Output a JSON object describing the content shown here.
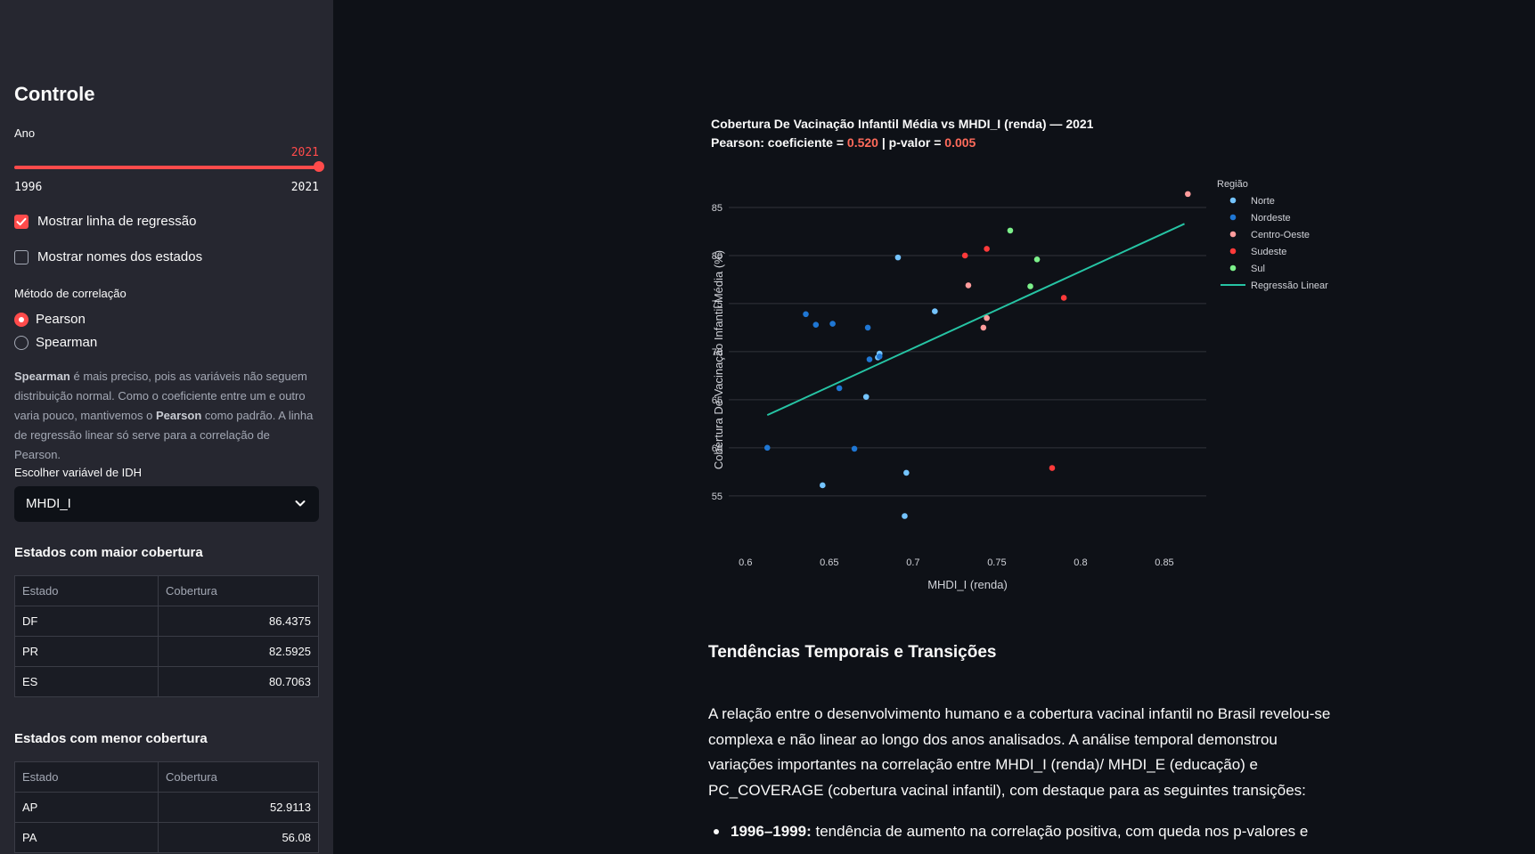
{
  "sidebar": {
    "title": "Controle",
    "year_label": "Ano",
    "year_value": "2021",
    "year_min": "1996",
    "year_max": "2021",
    "show_regression": {
      "label": "Mostrar linha de regressão",
      "checked": true
    },
    "show_state_names": {
      "label": "Mostrar nomes dos estados",
      "checked": false
    },
    "method_label": "Método de correlação",
    "methods": [
      {
        "label": "Pearson",
        "selected": true
      },
      {
        "label": "Spearman",
        "selected": false
      }
    ],
    "info": {
      "b1": "Spearman",
      "t1": " é mais preciso, pois as variáveis não seguem distribuição normal. Como o coeficiente entre um e outro varia pouco, mantivemos o ",
      "b2": "Pearson",
      "t2": " como padrão. A linha de regressão linear só serve para a correlação de Pearson."
    },
    "idh_label": "Escolher variável de IDH",
    "idh_value": "MHDI_I",
    "top_title": "Estados com maior cobertura",
    "bottom_title": "Estados com menor cobertura",
    "col_state": "Estado",
    "col_cov": "Cobertura",
    "top_rows": [
      {
        "state": "DF",
        "cov": "86.4375"
      },
      {
        "state": "PR",
        "cov": "82.5925"
      },
      {
        "state": "ES",
        "cov": "80.7063"
      }
    ],
    "bottom_rows": [
      {
        "state": "AP",
        "cov": "52.9113"
      },
      {
        "state": "PA",
        "cov": "56.08"
      }
    ]
  },
  "chart_title": {
    "line1": "Cobertura De Vacinação Infantil Média vs MHDI_I (renda) — 2021",
    "line2_prefix": "Pearson: coeficiente = ",
    "coef": "0.520",
    "line2_mid": " | p-valor = ",
    "pval": "0.005"
  },
  "chart_data": {
    "type": "scatter",
    "xlabel": "MHDI_I (renda)",
    "ylabel": "Cobertura De Vacinação Infantil Média (%)",
    "xlim": [
      0.59,
      0.875
    ],
    "ylim": [
      51,
      87.5
    ],
    "xticks": [
      0.6,
      0.65,
      0.7,
      0.75,
      0.8,
      0.85
    ],
    "xtick_labels": [
      "0.6",
      "0.65",
      "0.7",
      "0.75",
      "0.8",
      "0.85"
    ],
    "yticks": [
      55,
      60,
      65,
      70,
      75,
      80,
      85
    ],
    "legend_title": "Região",
    "legend_position": "top-right",
    "series": [
      {
        "name": "Norte",
        "color": "#74c4ff",
        "points": [
          [
            0.691,
            79.8
          ],
          [
            0.713,
            74.2
          ],
          [
            0.672,
            65.3
          ],
          [
            0.68,
            69.8
          ],
          [
            0.679,
            69.4
          ],
          [
            0.696,
            57.4
          ],
          [
            0.646,
            56.1
          ],
          [
            0.695,
            52.9
          ]
        ]
      },
      {
        "name": "Nordeste",
        "color": "#1f77d4",
        "points": [
          [
            0.636,
            73.9
          ],
          [
            0.642,
            72.8
          ],
          [
            0.652,
            72.9
          ],
          [
            0.673,
            72.5
          ],
          [
            0.674,
            69.2
          ],
          [
            0.68,
            69.5
          ],
          [
            0.656,
            66.2
          ],
          [
            0.613,
            60.0
          ],
          [
            0.665,
            59.9
          ]
        ]
      },
      {
        "name": "Centro-Oeste",
        "color": "#ff9c9c",
        "points": [
          [
            0.733,
            76.9
          ],
          [
            0.744,
            73.5
          ],
          [
            0.742,
            72.5
          ],
          [
            0.864,
            86.4
          ]
        ]
      },
      {
        "name": "Sudeste",
        "color": "#ff3a3a",
        "points": [
          [
            0.731,
            80.0
          ],
          [
            0.744,
            80.7
          ],
          [
            0.79,
            75.6
          ],
          [
            0.783,
            57.9
          ]
        ]
      },
      {
        "name": "Sul",
        "color": "#7cf08a",
        "points": [
          [
            0.758,
            82.6
          ],
          [
            0.774,
            79.6
          ],
          [
            0.77,
            76.8
          ]
        ]
      }
    ],
    "regression": {
      "name": "Regressão Linear",
      "color": "#26c4a4",
      "x": [
        0.613,
        0.862
      ],
      "y": [
        63.4,
        83.3
      ]
    }
  },
  "section_title": "Tendências Temporais e Transições",
  "paragraph": "A relação entre o desenvolvimento humano e a cobertura vacinal infantil no Brasil revelou-se complexa e não linear ao longo dos anos analisados. A análise temporal demonstrou variações importantes na correlação entre MHDI_I (renda)/ MHDI_E (educação) e PC_COVERAGE (cobertura vacinal infantil), com destaque para as seguintes transições:",
  "bullets": [
    {
      "bold": "1996–1999:",
      "text": " tendência de aumento na correlação positiva, com queda nos p-valores e"
    }
  ],
  "colors": {
    "accent": "#ff4b4b",
    "sidebar_bg": "#262730",
    "main_bg": "#0e1117"
  }
}
